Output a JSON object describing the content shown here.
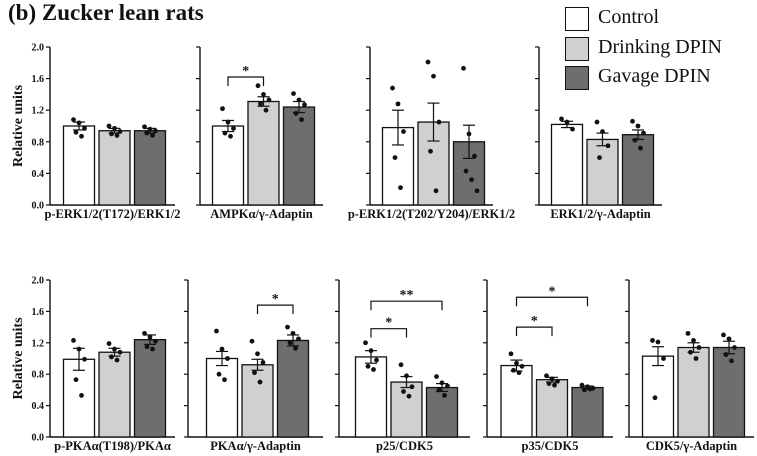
{
  "figure": {
    "title": "(b)  Zucker lean rats",
    "ylabel": "Relative units"
  },
  "legend": [
    {
      "label": "Control",
      "color": "#ffffff"
    },
    {
      "label": "Drinking DPIN",
      "color": "#d0d0d0"
    },
    {
      "label": "Gavage DPIN",
      "color": "#6e6e6e"
    }
  ],
  "colors": {
    "control": "#ffffff",
    "drinking": "#d0d0d0",
    "gavage": "#6e6e6e",
    "axis": "#111111"
  },
  "chart_data": [
    {
      "type": "bar",
      "row": 1,
      "xlabel": "p-ERK1/2(T172)/ERK1/2",
      "ylim": [
        0,
        2.0
      ],
      "yticks": [
        "0.0",
        "0.4",
        "0.8",
        "1.2",
        "1.6",
        "2.0"
      ],
      "show_y_ticks": true,
      "categories": [
        "Control",
        "Drinking DPIN",
        "Gavage DPIN"
      ],
      "values": [
        1.0,
        0.94,
        0.94
      ],
      "sem": [
        0.05,
        0.03,
        0.03
      ],
      "points": [
        [
          1.08,
          1.04,
          0.97,
          0.92,
          0.87
        ],
        [
          1.0,
          0.97,
          0.93,
          0.9,
          0.88
        ],
        [
          0.99,
          0.96,
          0.94,
          0.91,
          0.88
        ]
      ],
      "annotations": []
    },
    {
      "type": "bar",
      "row": 1,
      "xlabel": "AMPKα/γ-Adaptin",
      "ylim": [
        0,
        2.0
      ],
      "show_y_ticks": false,
      "categories": [
        "Control",
        "Drinking DPIN",
        "Gavage DPIN"
      ],
      "values": [
        1.0,
        1.31,
        1.24
      ],
      "sem": [
        0.07,
        0.06,
        0.07
      ],
      "points": [
        [
          1.22,
          1.05,
          0.97,
          0.91,
          0.87
        ],
        [
          1.51,
          1.4,
          1.33,
          1.28,
          1.2
        ],
        [
          1.41,
          1.33,
          1.27,
          1.16,
          1.08
        ]
      ],
      "annotations": [
        {
          "from": 0,
          "to": 1,
          "label": "*",
          "level": 1.62
        }
      ]
    },
    {
      "type": "bar",
      "row": 1,
      "xlabel": "p-ERK1/2(T202/Y204)/ERK1/2",
      "ylim": [
        0,
        2.0
      ],
      "show_y_ticks": false,
      "categories": [
        "Control",
        "Drinking DPIN",
        "Gavage DPIN"
      ],
      "values": [
        0.98,
        1.05,
        0.8
      ],
      "sem": [
        0.22,
        0.24,
        0.21
      ],
      "points": [
        [
          1.48,
          1.28,
          0.93,
          0.6,
          0.22
        ],
        [
          1.81,
          1.63,
          1.05,
          0.68,
          0.18
        ],
        [
          1.73,
          0.9,
          0.62,
          0.43,
          0.32,
          0.18
        ]
      ],
      "annotations": []
    },
    {
      "type": "bar",
      "row": 1,
      "xlabel": "ERK1/2/γ-Adaptin",
      "ylim": [
        0,
        2.0
      ],
      "show_y_ticks": false,
      "categories": [
        "Control",
        "Drinking DPIN",
        "Gavage DPIN"
      ],
      "values": [
        1.02,
        0.83,
        0.89
      ],
      "sem": [
        0.04,
        0.08,
        0.06
      ],
      "points": [
        [
          1.09,
          1.05,
          0.96
        ],
        [
          1.05,
          0.93,
          0.75,
          0.6
        ],
        [
          1.06,
          1.0,
          0.91,
          0.82,
          0.72
        ]
      ],
      "annotations": []
    },
    {
      "type": "bar",
      "row": 2,
      "xlabel": "p-PKAα(T198)/PKAα",
      "ylim": [
        0,
        2.0
      ],
      "yticks": [
        "0.0",
        "0.4",
        "0.8",
        "1.2",
        "1.6",
        "2.0"
      ],
      "show_y_ticks": true,
      "categories": [
        "Control",
        "Drinking DPIN",
        "Gavage DPIN"
      ],
      "values": [
        0.99,
        1.08,
        1.24
      ],
      "sem": [
        0.14,
        0.05,
        0.06
      ],
      "points": [
        [
          1.23,
          1.12,
          0.99,
          0.73,
          0.53
        ],
        [
          1.19,
          1.12,
          1.08,
          1.02,
          0.98
        ],
        [
          1.32,
          1.27,
          1.22,
          1.15,
          1.12
        ]
      ],
      "annotations": []
    },
    {
      "type": "bar",
      "row": 2,
      "xlabel": "PKAα/γ-Adaptin",
      "ylim": [
        0,
        2.0
      ],
      "show_y_ticks": false,
      "categories": [
        "Control",
        "Drinking DPIN",
        "Gavage DPIN"
      ],
      "values": [
        1.0,
        0.92,
        1.23
      ],
      "sem": [
        0.09,
        0.07,
        0.07
      ],
      "points": [
        [
          1.35,
          1.12,
          1.0,
          0.8,
          0.73
        ],
        [
          1.22,
          1.06,
          0.95,
          0.82,
          0.7
        ],
        [
          1.4,
          1.32,
          1.25,
          1.2,
          1.13
        ]
      ],
      "annotations": [
        {
          "from": 1,
          "to": 2,
          "label": "*",
          "level": 1.68
        }
      ]
    },
    {
      "type": "bar",
      "row": 2,
      "xlabel": "p25/CDK5",
      "ylim": [
        0,
        2.0
      ],
      "show_y_ticks": false,
      "categories": [
        "Control",
        "Drinking DPIN",
        "Gavage DPIN"
      ],
      "values": [
        1.02,
        0.7,
        0.63
      ],
      "sem": [
        0.08,
        0.07,
        0.05
      ],
      "points": [
        [
          1.2,
          1.1,
          0.98,
          0.9,
          0.86
        ],
        [
          0.92,
          0.78,
          0.64,
          0.58,
          0.52
        ],
        [
          0.77,
          0.69,
          0.65,
          0.6,
          0.53
        ]
      ],
      "annotations": [
        {
          "from": 0,
          "to": 1,
          "label": "*",
          "level": 1.38
        },
        {
          "from": 0,
          "to": 2,
          "label": "**",
          "level": 1.73
        }
      ]
    },
    {
      "type": "bar",
      "row": 2,
      "xlabel": "p35/CDK5",
      "ylim": [
        0,
        2.0
      ],
      "show_y_ticks": false,
      "categories": [
        "Control",
        "Drinking DPIN",
        "Gavage DPIN"
      ],
      "values": [
        0.91,
        0.73,
        0.63
      ],
      "sem": [
        0.07,
        0.03,
        0.02
      ],
      "points": [
        [
          1.06,
          0.94,
          0.9,
          0.85,
          0.82
        ],
        [
          0.78,
          0.74,
          0.71,
          0.68,
          0.66
        ],
        [
          0.66,
          0.64,
          0.62,
          0.6,
          0.61
        ]
      ],
      "annotations": [
        {
          "from": 0,
          "to": 1,
          "label": "*",
          "level": 1.4
        },
        {
          "from": 0,
          "to": 2,
          "label": "*",
          "level": 1.78
        }
      ]
    },
    {
      "type": "bar",
      "row": 2,
      "xlabel": "CDK5/γ-Adaptin",
      "ylim": [
        0,
        2.0
      ],
      "show_y_ticks": false,
      "categories": [
        "Control",
        "Drinking DPIN",
        "Gavage DPIN"
      ],
      "values": [
        1.03,
        1.14,
        1.14
      ],
      "sem": [
        0.12,
        0.06,
        0.08
      ],
      "points": [
        [
          1.23,
          1.21,
          1.0,
          0.5
        ],
        [
          1.32,
          1.23,
          1.14,
          1.08,
          1.0
        ],
        [
          1.3,
          1.25,
          1.14,
          1.05,
          0.97
        ]
      ],
      "annotations": []
    }
  ]
}
